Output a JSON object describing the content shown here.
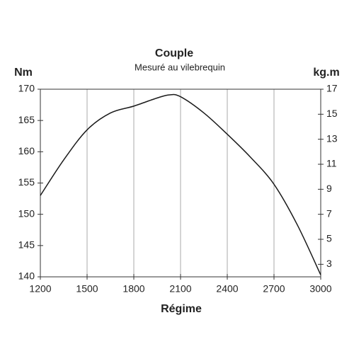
{
  "chart_data": {
    "type": "line",
    "title": "Couple",
    "subtitle": "Mesuré au vilebrequin",
    "x_label": "Régime",
    "y_label": "Nm",
    "y2_label": "kg.m",
    "x": [
      1200,
      1350,
      1500,
      1650,
      1800,
      1950,
      2030,
      2100,
      2250,
      2400,
      2550,
      2700,
      2850,
      3000
    ],
    "series": [
      {
        "name": "Couple",
        "color": "#1a1a1a",
        "values": [
          153,
          158.7,
          163.5,
          166.2,
          167.3,
          168.6,
          169.1,
          168.8,
          166.2,
          162.8,
          159.1,
          154.8,
          148.3,
          140.3
        ]
      }
    ],
    "xlim": [
      1200,
      3000
    ],
    "xticks": [
      1200,
      1500,
      1800,
      2100,
      2400,
      2700,
      3000
    ],
    "ylim": [
      140,
      170
    ],
    "yticks": [
      140,
      145,
      150,
      155,
      160,
      165,
      170
    ],
    "y2lim": [
      2,
      17
    ],
    "y2ticks": [
      3,
      5,
      7,
      9,
      11,
      13,
      15,
      17
    ],
    "grid": "x"
  }
}
